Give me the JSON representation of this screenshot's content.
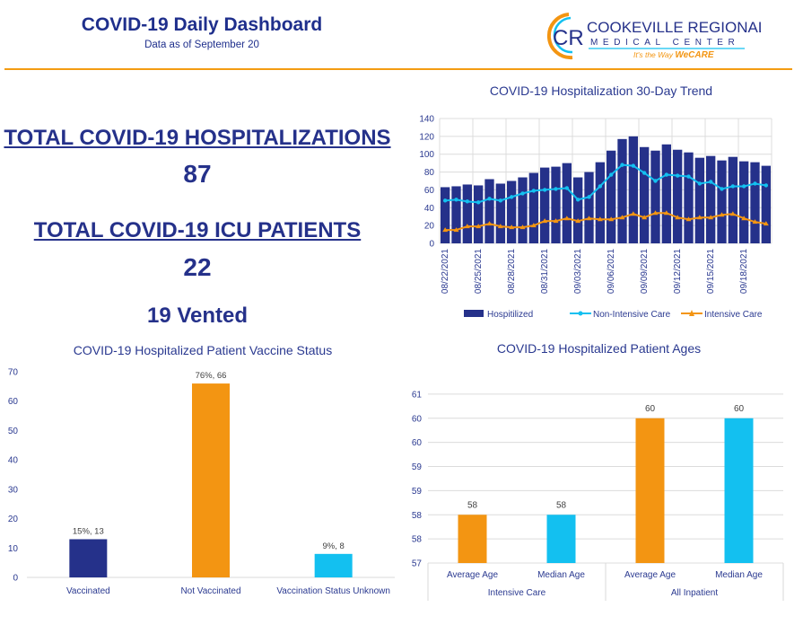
{
  "header": {
    "title": "COVID-19 Daily Dashboard",
    "subtitle": "Data as of September 20",
    "logo": {
      "line1": "COOKEVILLE REGIONAL",
      "line2": "MEDICAL CENTER",
      "tagline_a": "It's the Way ",
      "tagline_b": "WeCARE",
      "monogram": "CR"
    }
  },
  "stats": {
    "hosp_label": "TOTAL COVID-19 HOSPITALIZATIONS",
    "hosp_value": "87",
    "icu_label": "TOTAL COVID-19 ICU PATIENTS",
    "icu_value": "22",
    "vented": "19 Vented"
  },
  "colors": {
    "navy": "#25318a",
    "cyan": "#13c0f0",
    "orange": "#f39512",
    "rule": "#f39c12"
  },
  "chart_data": [
    {
      "type": "bar+line",
      "title": "COVID-19 Hospitalization 30-Day Trend",
      "x": [
        "08/22/2021",
        "08/23/2021",
        "08/24/2021",
        "08/25/2021",
        "08/26/2021",
        "08/27/2021",
        "08/28/2021",
        "08/29/2021",
        "08/30/2021",
        "08/31/2021",
        "09/01/2021",
        "09/02/2021",
        "09/03/2021",
        "09/04/2021",
        "09/05/2021",
        "09/06/2021",
        "09/07/2021",
        "09/08/2021",
        "09/09/2021",
        "09/10/2021",
        "09/11/2021",
        "09/12/2021",
        "09/13/2021",
        "09/14/2021",
        "09/15/2021",
        "09/16/2021",
        "09/17/2021",
        "09/18/2021",
        "09/19/2021",
        "09/20/2021"
      ],
      "x_tick_labels": [
        "08/22/2021",
        "08/25/2021",
        "08/28/2021",
        "08/31/2021",
        "09/03/2021",
        "09/06/2021",
        "09/09/2021",
        "09/12/2021",
        "09/15/2021",
        "09/18/2021"
      ],
      "ylim": [
        0,
        140
      ],
      "yticks": [
        0,
        20,
        40,
        60,
        80,
        100,
        120,
        140
      ],
      "grid": true,
      "legend": "bottom",
      "series": [
        {
          "name": "Hospitilized",
          "kind": "bar",
          "color": "#25318a",
          "values": [
            63,
            64,
            66,
            65,
            72,
            67,
            70,
            74,
            79,
            85,
            86,
            90,
            74,
            80,
            91,
            104,
            117,
            120,
            108,
            104,
            111,
            105,
            102,
            96,
            98,
            93,
            97,
            92,
            91,
            87
          ]
        },
        {
          "name": "Non-Intensive Care",
          "kind": "line",
          "marker": "circle",
          "color": "#13c0f0",
          "values": [
            48,
            49,
            47,
            46,
            50,
            48,
            52,
            56,
            59,
            60,
            61,
            62,
            49,
            52,
            64,
            77,
            88,
            87,
            79,
            70,
            77,
            76,
            75,
            67,
            69,
            61,
            64,
            64,
            67,
            65
          ]
        },
        {
          "name": "Intensive Care",
          "kind": "line",
          "marker": "triangle",
          "color": "#f39512",
          "values": [
            15,
            15,
            19,
            19,
            22,
            19,
            18,
            18,
            20,
            25,
            25,
            28,
            25,
            28,
            27,
            27,
            29,
            33,
            29,
            34,
            34,
            29,
            27,
            29,
            29,
            32,
            33,
            28,
            24,
            22
          ]
        }
      ]
    },
    {
      "type": "bar",
      "title": "COVID-19 Hospitalized Patient Vaccine Status",
      "categories": [
        "Vaccinated",
        "Not Vaccinated",
        "Vaccination Status Unknown"
      ],
      "values": [
        13,
        66,
        8
      ],
      "data_labels": [
        "15%, 13",
        "76%, 66",
        "9%, 8"
      ],
      "colors": [
        "#25318a",
        "#f39512",
        "#13c0f0"
      ],
      "ylim": [
        0,
        70
      ],
      "yticks": [
        0,
        10,
        20,
        30,
        40,
        50,
        60,
        70
      ],
      "grid": false
    },
    {
      "type": "bar",
      "title": "COVID-19 Hospitalized Patient Ages",
      "categories": [
        "Average Age",
        "Median Age",
        "Average Age",
        "Median Age"
      ],
      "groups": [
        "Intensive Care",
        "All Inpatient"
      ],
      "values": [
        58,
        58,
        60,
        60
      ],
      "data_labels": [
        "58",
        "58",
        "60",
        "60"
      ],
      "colors": [
        "#f39512",
        "#13c0f0",
        "#f39512",
        "#13c0f0"
      ],
      "ylim": [
        57,
        61
      ],
      "ytick_labels": [
        "57",
        "58",
        "58",
        "59",
        "59",
        "60",
        "60",
        "61"
      ],
      "grid": true
    }
  ]
}
